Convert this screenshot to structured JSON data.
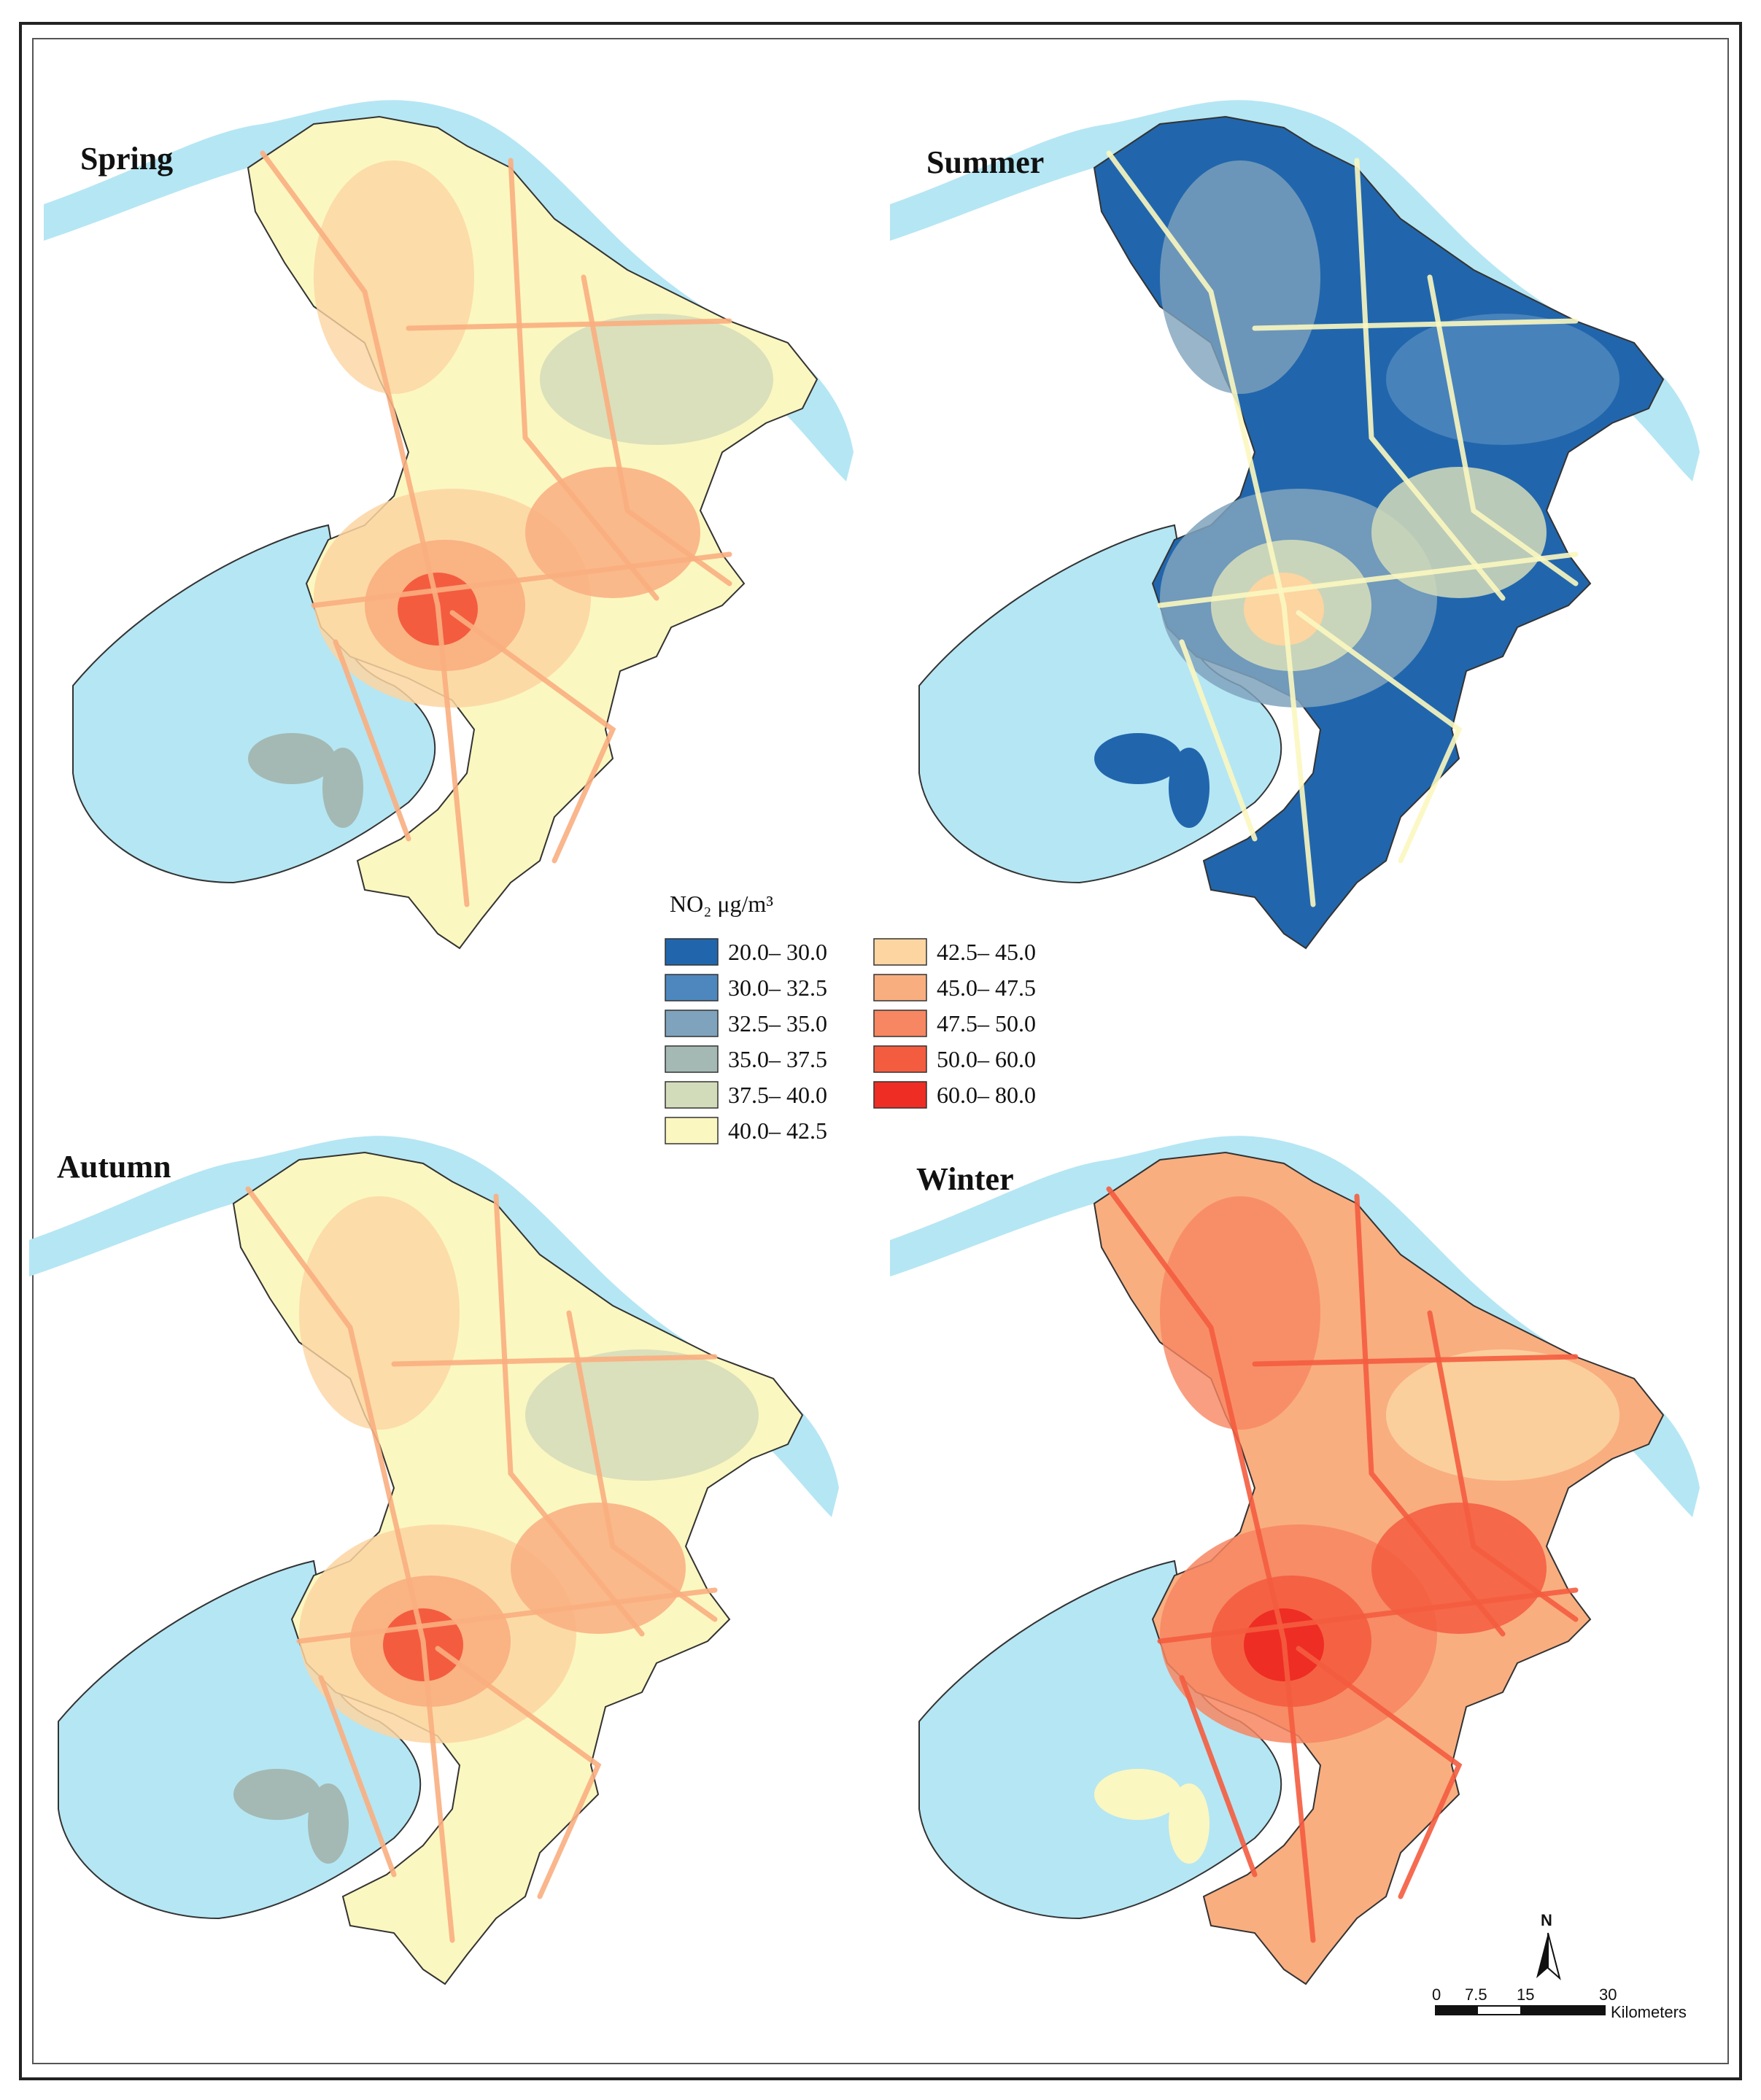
{
  "panels": [
    {
      "title": "Spring",
      "season": "spring"
    },
    {
      "title": "Summer",
      "season": "summer"
    },
    {
      "title": "Autumn",
      "season": "autumn"
    },
    {
      "title": "Winter",
      "season": "winter"
    }
  ],
  "legend": {
    "title": "NO₂ μg/m³",
    "classes": [
      {
        "label": "20.0– 30.0",
        "color": "#2166ac"
      },
      {
        "label": "30.0– 32.5",
        "color": "#4d87bd"
      },
      {
        "label": "32.5– 35.0",
        "color": "#7fa3bd"
      },
      {
        "label": "35.0– 37.5",
        "color": "#a4b9b3"
      },
      {
        "label": "37.5– 40.0",
        "color": "#d3dcba"
      },
      {
        "label": "40.0– 42.5",
        "color": "#fbf7c0"
      },
      {
        "label": "42.5– 45.0",
        "color": "#fcd5a1"
      },
      {
        "label": "45.0– 47.5",
        "color": "#f9ae80"
      },
      {
        "label": "47.5– 50.0",
        "color": "#f78662"
      },
      {
        "label": "50.0– 60.0",
        "color": "#f45c3f"
      },
      {
        "label": "60.0– 80.0",
        "color": "#ee2d24"
      }
    ]
  },
  "scale_bar": {
    "ticks": [
      "0",
      "7.5",
      "15",
      "30"
    ],
    "unit": "Kilometers"
  },
  "north_arrow": {
    "label": "N"
  },
  "colors": {
    "water": "#b5e6f4",
    "land": "#ffffff",
    "boundary": "#333333",
    "roads": "#f4a07a"
  }
}
